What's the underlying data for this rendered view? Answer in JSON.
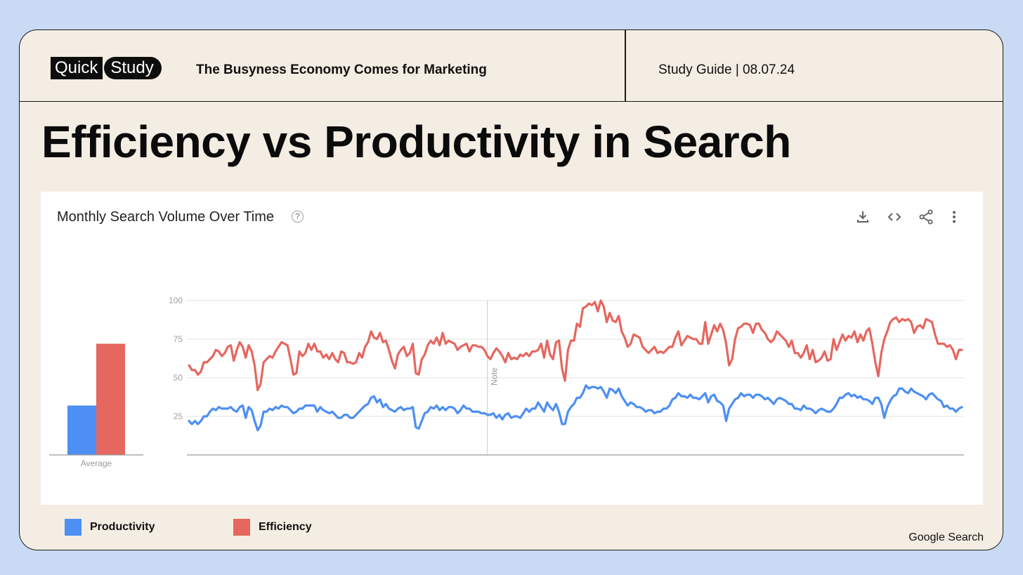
{
  "header": {
    "logo_word_1": "Quick",
    "logo_word_2": "Study",
    "title": "The Busyness Economy Comes for Marketing",
    "meta": "Study Guide | 08.07.24"
  },
  "page_title": "Efficiency vs Productivity in Search",
  "panel": {
    "title": "Monthly Search Volume Over Time",
    "help_glyph": "?",
    "toolbar": [
      "download-icon",
      "embed-icon",
      "share-icon",
      "more-icon"
    ]
  },
  "source": "Google Search",
  "colors": {
    "productivity": "#4d8ff2",
    "efficiency": "#e5675f"
  },
  "chart_data": [
    {
      "type": "bar",
      "categories": [
        "Average"
      ],
      "series": [
        {
          "name": "Productivity",
          "values": [
            32
          ]
        },
        {
          "name": "Efficiency",
          "values": [
            72
          ]
        }
      ],
      "ylim": [
        0,
        100
      ]
    },
    {
      "type": "line",
      "ylim": [
        0,
        100
      ],
      "yticks": [
        25,
        50,
        75,
        100
      ],
      "grid": true,
      "annotation": {
        "label": "Note",
        "index": 100
      },
      "legend_position": "bottom-left",
      "series": [
        {
          "name": "Efficiency",
          "values": [
            58,
            55,
            55,
            52,
            54,
            60,
            60,
            62,
            64,
            68,
            67,
            64,
            66,
            70,
            71,
            61,
            68,
            73,
            70,
            63,
            71,
            67,
            58,
            42,
            46,
            60,
            62,
            64,
            63,
            67,
            70,
            73,
            72,
            71,
            62,
            52,
            53,
            67,
            64,
            66,
            72,
            68,
            72,
            67,
            67,
            63,
            65,
            62,
            66,
            62,
            60,
            67,
            66,
            60,
            60,
            59,
            60,
            66,
            63,
            70,
            73,
            80,
            76,
            75,
            79,
            73,
            74,
            68,
            61,
            56,
            65,
            68,
            70,
            64,
            66,
            72,
            53,
            52,
            62,
            65,
            71,
            74,
            72,
            76,
            71,
            79,
            72,
            74,
            73,
            72,
            68,
            70,
            71,
            72,
            67,
            71,
            71,
            70,
            70,
            68,
            64,
            62,
            66,
            69,
            67,
            64,
            60,
            66,
            62,
            63,
            62,
            65,
            64,
            66,
            64,
            67,
            67,
            68,
            72,
            63,
            74,
            65,
            62,
            73,
            74,
            56,
            48,
            68,
            74,
            74,
            85,
            83,
            95,
            96,
            98,
            97,
            99,
            93,
            100,
            96,
            86,
            92,
            87,
            86,
            90,
            80,
            76,
            70,
            72,
            78,
            77,
            76,
            70,
            68,
            66,
            68,
            70,
            66,
            67,
            66,
            68,
            70,
            70,
            76,
            80,
            71,
            74,
            77,
            76,
            75,
            75,
            72,
            72,
            86,
            72,
            78,
            84,
            80,
            85,
            81,
            72,
            58,
            62,
            75,
            82,
            83,
            85,
            85,
            84,
            79,
            85,
            85,
            81,
            79,
            75,
            73,
            75,
            80,
            78,
            76,
            74,
            70,
            74,
            66,
            66,
            63,
            66,
            71,
            62,
            68,
            60,
            61,
            63,
            67,
            61,
            62,
            75,
            68,
            73,
            78,
            74,
            77,
            76,
            80,
            73,
            78,
            74,
            80,
            82,
            72,
            60,
            51,
            66,
            75,
            80,
            86,
            88,
            89,
            86,
            88,
            87,
            88,
            86,
            79,
            83,
            84,
            82,
            88,
            87,
            86,
            78,
            72,
            72,
            72,
            70,
            71,
            68,
            62,
            68,
            68
          ],
          "color": "#e5675f"
        },
        {
          "name": "Productivity",
          "values": [
            22,
            20,
            22,
            20,
            22,
            25,
            25,
            28,
            30,
            29,
            31,
            30,
            30,
            30,
            31,
            29,
            28,
            31,
            32,
            24,
            31,
            29,
            22,
            16,
            19,
            28,
            28,
            30,
            29,
            31,
            30,
            32,
            31,
            31,
            29,
            27,
            28,
            30,
            30,
            32,
            32,
            32,
            32,
            28,
            31,
            29,
            28,
            27,
            28,
            26,
            24,
            24,
            26,
            26,
            24,
            24,
            26,
            28,
            30,
            32,
            33,
            37,
            38,
            34,
            36,
            31,
            33,
            30,
            29,
            28,
            30,
            31,
            29,
            30,
            30,
            31,
            18,
            17,
            22,
            27,
            28,
            31,
            30,
            32,
            29,
            31,
            29,
            31,
            31,
            30,
            27,
            29,
            32,
            30,
            30,
            28,
            28,
            28,
            27,
            27,
            26,
            26,
            27,
            24,
            26,
            23,
            26,
            27,
            24,
            25,
            25,
            24,
            27,
            30,
            28,
            30,
            30,
            34,
            31,
            28,
            34,
            31,
            29,
            33,
            28,
            20,
            20,
            28,
            31,
            33,
            37,
            37,
            40,
            45,
            43,
            44,
            44,
            43,
            44,
            41,
            37,
            43,
            42,
            40,
            43,
            38,
            35,
            32,
            34,
            33,
            31,
            31,
            30,
            28,
            29,
            29,
            27,
            28,
            28,
            30,
            30,
            32,
            36,
            37,
            40,
            38,
            38,
            37,
            39,
            37,
            37,
            36,
            38,
            40,
            34,
            38,
            39,
            35,
            34,
            32,
            22,
            30,
            33,
            36,
            37,
            40,
            38,
            39,
            39,
            37,
            39,
            39,
            38,
            36,
            37,
            35,
            33,
            36,
            37,
            36,
            35,
            33,
            33,
            30,
            30,
            29,
            32,
            30,
            30,
            29,
            27,
            29,
            30,
            29,
            28,
            28,
            30,
            33,
            37,
            37,
            39,
            40,
            38,
            39,
            37,
            38,
            36,
            36,
            35,
            33,
            37,
            37,
            33,
            24,
            31,
            35,
            38,
            39,
            43,
            43,
            41,
            40,
            43,
            41,
            40,
            39,
            38,
            36,
            39,
            40,
            38,
            36,
            35,
            31,
            32,
            30,
            30,
            28,
            30,
            31
          ],
          "color": "#4d8ff2"
        }
      ]
    }
  ]
}
